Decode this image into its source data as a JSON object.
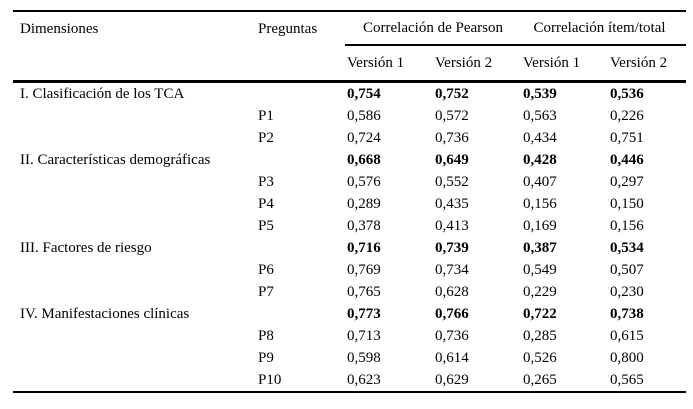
{
  "table": {
    "headers": {
      "dimensiones": "Dimensiones",
      "preguntas": "Preguntas",
      "group1": "Correlación de Pearson",
      "group2": "Correlación ítem/total",
      "sub": [
        "Versión 1",
        "Versión 2",
        "Versión 1",
        "Versión 2"
      ]
    },
    "rows": [
      {
        "dimension": "I. Clasificación de los TCA",
        "pregunta": "",
        "bold": true,
        "values": [
          "0,754",
          "0,752",
          "0,539",
          "0,536"
        ]
      },
      {
        "dimension": "",
        "pregunta": "P1",
        "bold": false,
        "values": [
          "0,586",
          "0,572",
          "0,563",
          "0,226"
        ]
      },
      {
        "dimension": "",
        "pregunta": "P2",
        "bold": false,
        "values": [
          "0,724",
          "0,736",
          "0,434",
          "0,751"
        ]
      },
      {
        "dimension": "II. Características demográficas",
        "pregunta": "",
        "bold": true,
        "values": [
          "0,668",
          "0,649",
          "0,428",
          "0,446"
        ]
      },
      {
        "dimension": "",
        "pregunta": "P3",
        "bold": false,
        "values": [
          "0,576",
          "0,552",
          "0,407",
          "0,297"
        ]
      },
      {
        "dimension": "",
        "pregunta": "P4",
        "bold": false,
        "values": [
          "0,289",
          "0,435",
          "0,156",
          "0,150"
        ]
      },
      {
        "dimension": "",
        "pregunta": "P5",
        "bold": false,
        "values": [
          "0,378",
          "0,413",
          "0,169",
          "0,156"
        ]
      },
      {
        "dimension": "III. Factores de riesgo",
        "pregunta": "",
        "bold": true,
        "values": [
          "0,716",
          "0,739",
          "0,387",
          "0,534"
        ]
      },
      {
        "dimension": "",
        "pregunta": "P6",
        "bold": false,
        "values": [
          "0,769",
          "0,734",
          "0,549",
          "0,507"
        ]
      },
      {
        "dimension": "",
        "pregunta": "P7",
        "bold": false,
        "values": [
          "0,765",
          "0,628",
          "0,229",
          "0,230"
        ]
      },
      {
        "dimension": "IV. Manifestaciones clínicas",
        "pregunta": "",
        "bold": true,
        "values": [
          "0,773",
          "0,766",
          "0,722",
          "0,738"
        ]
      },
      {
        "dimension": "",
        "pregunta": "P8",
        "bold": false,
        "values": [
          "0,713",
          "0,736",
          "0,285",
          "0,615"
        ]
      },
      {
        "dimension": "",
        "pregunta": "P9",
        "bold": false,
        "values": [
          "0,598",
          "0,614",
          "0,526",
          "0,800"
        ]
      },
      {
        "dimension": "",
        "pregunta": "P10",
        "bold": false,
        "values": [
          "0,623",
          "0,629",
          "0,265",
          "0,565"
        ]
      }
    ]
  }
}
